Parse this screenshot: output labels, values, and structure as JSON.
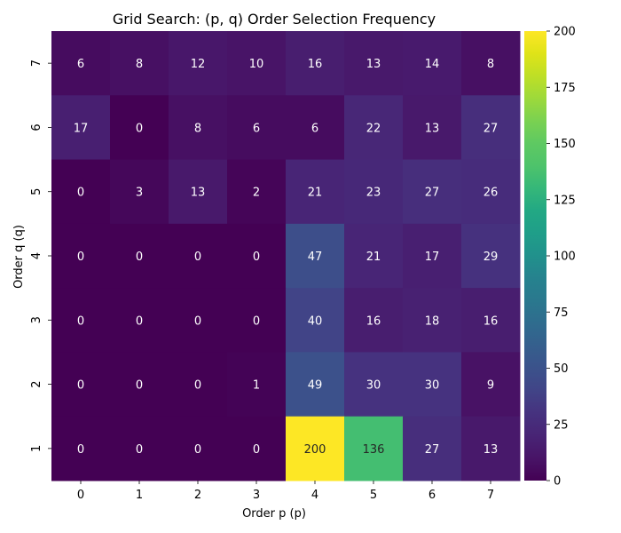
{
  "chart_data": {
    "type": "heatmap",
    "title": "Grid Search: (p, q) Order Selection Frequency",
    "xlabel": "Order p (p)",
    "ylabel": "Order q (q)",
    "x_categories": [
      "0",
      "1",
      "2",
      "3",
      "4",
      "5",
      "6",
      "7"
    ],
    "y_categories": [
      "7",
      "6",
      "5",
      "4",
      "3",
      "2",
      "1"
    ],
    "values": [
      [
        6,
        8,
        12,
        10,
        16,
        13,
        14,
        8
      ],
      [
        17,
        0,
        8,
        6,
        6,
        22,
        13,
        27
      ],
      [
        0,
        3,
        13,
        2,
        21,
        23,
        27,
        26
      ],
      [
        0,
        0,
        0,
        0,
        47,
        21,
        17,
        29
      ],
      [
        0,
        0,
        0,
        0,
        40,
        16,
        18,
        16
      ],
      [
        0,
        0,
        0,
        1,
        49,
        30,
        30,
        9
      ],
      [
        0,
        0,
        0,
        0,
        200,
        136,
        27,
        13
      ]
    ],
    "colorscale": "viridis",
    "zlim": [
      0,
      200
    ],
    "colorbar_ticks": [
      "0",
      "25",
      "50",
      "75",
      "100",
      "125",
      "150",
      "175",
      "200"
    ],
    "annotations": true,
    "grid": false
  }
}
